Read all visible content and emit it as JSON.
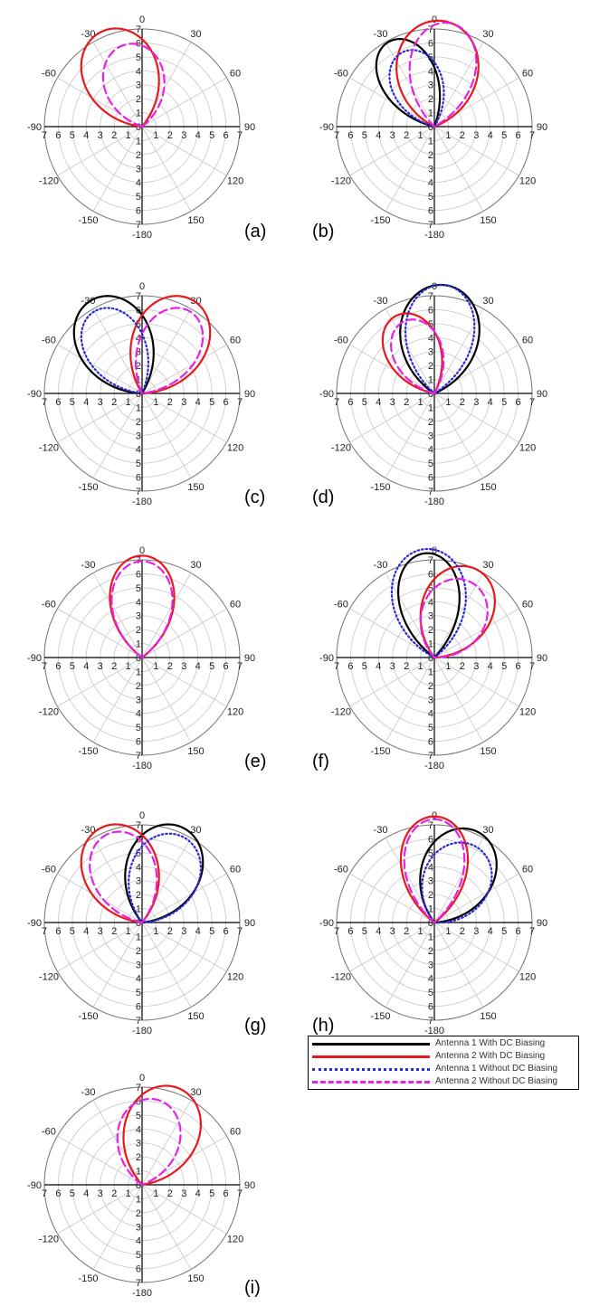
{
  "figure": {
    "panels_label_note": ""
  },
  "legend": {
    "items": [
      {
        "label": "Antenna 1 With DC Biasing",
        "color": "#000000",
        "style": "solid"
      },
      {
        "label": "Antenna 2 With DC Biasing",
        "color": "#e8191c",
        "style": "solid"
      },
      {
        "label": "Antenna 1 Without DC Biasing",
        "color": "#2a2ad8",
        "style": "dotted"
      },
      {
        "label": "Antenna 2 Without DC Biasing",
        "color": "#e622e6",
        "style": "dashed"
      }
    ]
  },
  "chart_data": [
    {
      "type": "polar",
      "label": "(a)",
      "angle_ticks": [
        "0",
        "30",
        "60",
        "90",
        "120",
        "150",
        "-180",
        "-150",
        "-120",
        "-90",
        "-60",
        "-30"
      ],
      "r_ticks": [
        0,
        1,
        2,
        3,
        4,
        5,
        6,
        7
      ],
      "rlim": [
        0,
        7
      ],
      "series": [
        {
          "name": "Antenna 2 With DC Biasing",
          "color": "#e8191c",
          "style": "solid",
          "lobe": {
            "peak_angle_deg": -22,
            "peak_r": 7.4,
            "half_width_deg": 28
          }
        },
        {
          "name": "Antenna 2 Without DC Biasing",
          "color": "#e622e6",
          "style": "dashed",
          "lobe": {
            "peak_angle_deg": -10,
            "peak_r": 6.0,
            "half_width_deg": 28
          }
        }
      ]
    },
    {
      "type": "polar",
      "label": "(b)",
      "angle_ticks": [
        "0",
        "30",
        "60",
        "90",
        "120",
        "150",
        "-180",
        "-150",
        "-120",
        "-90",
        "-60",
        "-30"
      ],
      "r_ticks": [
        0,
        1,
        2,
        3,
        4,
        5,
        6,
        7
      ],
      "rlim": [
        0,
        7
      ],
      "series": [
        {
          "name": "Antenna 1 With DC Biasing",
          "color": "#000000",
          "style": "solid",
          "lobe": {
            "peak_angle_deg": -28,
            "peak_r": 6.9,
            "half_width_deg": 22
          }
        },
        {
          "name": "Antenna 2 With DC Biasing",
          "color": "#e8191c",
          "style": "solid",
          "lobe": {
            "peak_angle_deg": 3,
            "peak_r": 7.6,
            "half_width_deg": 30
          }
        },
        {
          "name": "Antenna 1 Without DC Biasing",
          "color": "#2a2ad8",
          "style": "dotted",
          "lobe": {
            "peak_angle_deg": -22,
            "peak_r": 5.8,
            "half_width_deg": 24
          }
        },
        {
          "name": "Antenna 2 Without DC Biasing",
          "color": "#e622e6",
          "style": "dashed",
          "lobe": {
            "peak_angle_deg": 8,
            "peak_r": 7.5,
            "half_width_deg": 24
          }
        }
      ]
    },
    {
      "type": "polar",
      "label": "(c)",
      "angle_ticks": [
        "0",
        "30",
        "60",
        "90",
        "120",
        "150",
        "-180",
        "-150",
        "-120",
        "-90",
        "-60",
        "-30"
      ],
      "r_ticks": [
        0,
        1,
        2,
        3,
        4,
        5,
        6,
        7
      ],
      "rlim": [
        0,
        7
      ],
      "series": [
        {
          "name": "Antenna 1 With DC Biasing",
          "color": "#000000",
          "style": "solid",
          "lobe": {
            "peak_angle_deg": -28,
            "peak_r": 7.6,
            "half_width_deg": 27
          }
        },
        {
          "name": "Antenna 2 With DC Biasing",
          "color": "#e8191c",
          "style": "solid",
          "lobe": {
            "peak_angle_deg": 28,
            "peak_r": 7.6,
            "half_width_deg": 27
          }
        },
        {
          "name": "Antenna 1 Without DC Biasing",
          "color": "#2a2ad8",
          "style": "dotted",
          "lobe": {
            "peak_angle_deg": -30,
            "peak_r": 6.8,
            "half_width_deg": 24
          }
        },
        {
          "name": "Antenna 2 Without DC Biasing",
          "color": "#e622e6",
          "style": "dashed",
          "lobe": {
            "peak_angle_deg": 30,
            "peak_r": 6.8,
            "half_width_deg": 24
          }
        }
      ]
    },
    {
      "type": "polar",
      "label": "(d)",
      "angle_ticks": [
        "0",
        "30",
        "60",
        "90",
        "120",
        "150",
        "-180",
        "-150",
        "-120",
        "-90",
        "-60",
        "-30"
      ],
      "r_ticks": [
        0,
        1,
        2,
        3,
        4,
        5,
        6,
        7
      ],
      "rlim": [
        0,
        7
      ],
      "series": [
        {
          "name": "Antenna 1 With DC Biasing",
          "color": "#000000",
          "style": "solid",
          "lobe": {
            "peak_angle_deg": 5,
            "peak_r": 7.8,
            "half_width_deg": 28
          }
        },
        {
          "name": "Antenna 2 With DC Biasing",
          "color": "#e8191c",
          "style": "solid",
          "lobe": {
            "peak_angle_deg": -26,
            "peak_r": 6.2,
            "half_width_deg": 24
          }
        },
        {
          "name": "Antenna 1 Without DC Biasing",
          "color": "#2a2ad8",
          "style": "dotted",
          "lobe": {
            "peak_angle_deg": 5,
            "peak_r": 7.8,
            "half_width_deg": 24
          }
        },
        {
          "name": "Antenna 2 Without DC Biasing",
          "color": "#e622e6",
          "style": "dashed",
          "lobe": {
            "peak_angle_deg": -22,
            "peak_r": 5.6,
            "half_width_deg": 24
          }
        }
      ]
    },
    {
      "type": "polar",
      "label": "(e)",
      "angle_ticks": [
        "0",
        "30",
        "60",
        "90",
        "120",
        "150",
        "-180",
        "-150",
        "-120",
        "-90",
        "-60",
        "-30"
      ],
      "r_ticks": [
        0,
        1,
        2,
        3,
        4,
        5,
        6,
        7
      ],
      "rlim": [
        0,
        7
      ],
      "series": [
        {
          "name": "Antenna 2 With DC Biasing",
          "color": "#e8191c",
          "style": "solid",
          "lobe": {
            "peak_angle_deg": 0,
            "peak_r": 7.3,
            "half_width_deg": 24
          }
        },
        {
          "name": "Antenna 2 Without DC Biasing",
          "color": "#e622e6",
          "style": "dashed",
          "lobe": {
            "peak_angle_deg": 0,
            "peak_r": 6.9,
            "half_width_deg": 24
          }
        }
      ]
    },
    {
      "type": "polar",
      "label": "(f)",
      "angle_ticks": [
        "0",
        "30",
        "60",
        "90",
        "120",
        "150",
        "-180",
        "-150",
        "-120",
        "-90",
        "-60",
        "-30"
      ],
      "r_ticks": [
        0,
        1,
        2,
        3,
        4,
        5,
        6,
        7
      ],
      "rlim": [
        0,
        7
      ],
      "series": [
        {
          "name": "Antenna 1 With DC Biasing",
          "color": "#000000",
          "style": "solid",
          "lobe": {
            "peak_angle_deg": -5,
            "peak_r": 7.5,
            "half_width_deg": 22
          }
        },
        {
          "name": "Antenna 2 With DC Biasing",
          "color": "#e8191c",
          "style": "solid",
          "lobe": {
            "peak_angle_deg": 25,
            "peak_r": 7.0,
            "half_width_deg": 28
          }
        },
        {
          "name": "Antenna 1 Without DC Biasing",
          "color": "#2a2ad8",
          "style": "dotted",
          "lobe": {
            "peak_angle_deg": -5,
            "peak_r": 7.8,
            "half_width_deg": 26
          }
        },
        {
          "name": "Antenna 2 Without DC Biasing",
          "color": "#e622e6",
          "style": "dashed",
          "lobe": {
            "peak_angle_deg": 25,
            "peak_r": 6.0,
            "half_width_deg": 30
          }
        }
      ]
    },
    {
      "type": "polar",
      "label": "(g)",
      "angle_ticks": [
        "0",
        "30",
        "60",
        "90",
        "120",
        "150",
        "-180",
        "-150",
        "-120",
        "-90",
        "-60",
        "-30"
      ],
      "r_ticks": [
        0,
        1,
        2,
        3,
        4,
        5,
        6,
        7
      ],
      "rlim": [
        0,
        7
      ],
      "series": [
        {
          "name": "Antenna 1 With DC Biasing",
          "color": "#000000",
          "style": "solid",
          "lobe": {
            "peak_angle_deg": 22,
            "peak_r": 7.4,
            "half_width_deg": 28
          }
        },
        {
          "name": "Antenna 2 With DC Biasing",
          "color": "#e8191c",
          "style": "solid",
          "lobe": {
            "peak_angle_deg": -22,
            "peak_r": 7.4,
            "half_width_deg": 28
          }
        },
        {
          "name": "Antenna 1 Without DC Biasing",
          "color": "#2a2ad8",
          "style": "dotted",
          "lobe": {
            "peak_angle_deg": 25,
            "peak_r": 6.8,
            "half_width_deg": 28
          }
        },
        {
          "name": "Antenna 2 Without DC Biasing",
          "color": "#e622e6",
          "style": "dashed",
          "lobe": {
            "peak_angle_deg": -20,
            "peak_r": 6.8,
            "half_width_deg": 26
          }
        }
      ]
    },
    {
      "type": "polar",
      "label": "(h)",
      "angle_ticks": [
        "0",
        "30",
        "60",
        "90",
        "120",
        "150",
        "-180",
        "-150",
        "-120",
        "-90",
        "-60",
        "-30"
      ],
      "r_ticks": [
        0,
        1,
        2,
        3,
        4,
        5,
        6,
        7
      ],
      "rlim": [
        0,
        7
      ],
      "series": [
        {
          "name": "Antenna 1 With DC Biasing",
          "color": "#000000",
          "style": "solid",
          "lobe": {
            "peak_angle_deg": 25,
            "peak_r": 7.2,
            "half_width_deg": 28
          }
        },
        {
          "name": "Antenna 2 With DC Biasing",
          "color": "#e8191c",
          "style": "solid",
          "lobe": {
            "peak_angle_deg": 0,
            "peak_r": 7.6,
            "half_width_deg": 24
          }
        },
        {
          "name": "Antenna 1 Without DC Biasing",
          "color": "#2a2ad8",
          "style": "dotted",
          "lobe": {
            "peak_angle_deg": 28,
            "peak_r": 6.2,
            "half_width_deg": 30
          }
        },
        {
          "name": "Antenna 2 Without DC Biasing",
          "color": "#e622e6",
          "style": "dashed",
          "lobe": {
            "peak_angle_deg": 0,
            "peak_r": 7.4,
            "half_width_deg": 22
          }
        }
      ]
    },
    {
      "type": "polar",
      "label": "(i)",
      "angle_ticks": [
        "0",
        "30",
        "60",
        "90",
        "120",
        "150",
        "-180",
        "-150",
        "-120",
        "-90",
        "-60",
        "-30"
      ],
      "r_ticks": [
        0,
        1,
        2,
        3,
        4,
        5,
        6,
        7
      ],
      "rlim": [
        0,
        7
      ],
      "series": [
        {
          "name": "Antenna 2 With DC Biasing",
          "color": "#e8191c",
          "style": "solid",
          "lobe": {
            "peak_angle_deg": 20,
            "peak_r": 7.4,
            "half_width_deg": 28
          }
        },
        {
          "name": "Antenna 2 Without DC Biasing",
          "color": "#e622e6",
          "style": "dashed",
          "lobe": {
            "peak_angle_deg": 8,
            "peak_r": 6.2,
            "half_width_deg": 28
          }
        }
      ]
    }
  ]
}
